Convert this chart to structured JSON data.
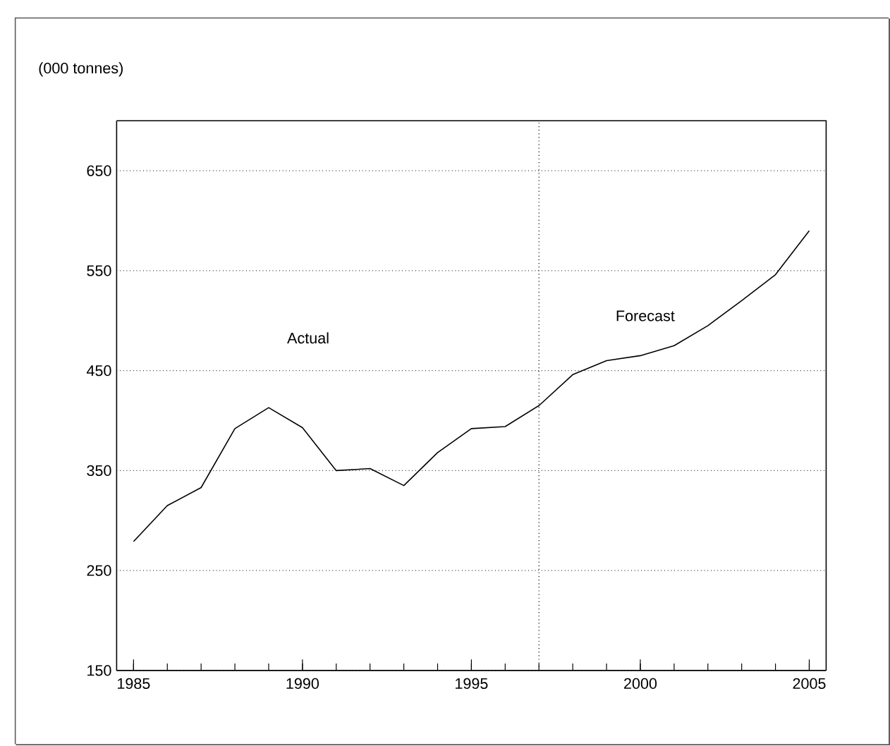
{
  "chart_data": {
    "type": "line",
    "ylabel": "(000 tonnes)",
    "x": [
      1985,
      1986,
      1987,
      1988,
      1989,
      1990,
      1991,
      1992,
      1993,
      1994,
      1995,
      1996,
      1997,
      1998,
      1999,
      2000,
      2001,
      2002,
      2003,
      2004,
      2005
    ],
    "values": [
      279,
      315,
      333,
      392,
      413,
      393,
      350,
      352,
      335,
      368,
      392,
      394,
      415,
      446,
      460,
      465,
      475,
      495,
      520,
      546,
      590
    ],
    "color": "#000000",
    "xlim": [
      1984.5,
      2005.5
    ],
    "xticks": [
      1985,
      1990,
      1995,
      2000,
      2005
    ],
    "ylim": [
      150,
      700
    ],
    "yticks": [
      150,
      250,
      350,
      450,
      550,
      650
    ],
    "grid": "y",
    "marker": "none",
    "line_style": "solid",
    "ref_lines": [
      {
        "axis": "x",
        "value": 1997,
        "line_style": "dotted"
      }
    ],
    "annotations": [
      "Actual",
      "Forecast"
    ]
  }
}
